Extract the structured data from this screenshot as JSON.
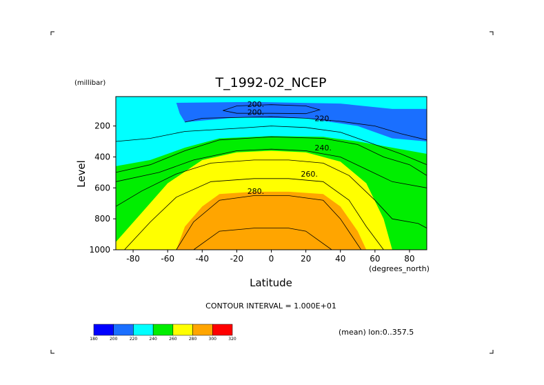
{
  "chart_data": {
    "type": "contour",
    "title": "T_1992-02_NCEP",
    "xlabel": "Latitude",
    "x_units": "(degrees_north)",
    "ylabel": "Level",
    "y_units": "(millibar)",
    "xlim": [
      -90,
      90
    ],
    "ylim": [
      1000,
      10
    ],
    "x_ticks": [
      -80,
      -60,
      -40,
      -20,
      0,
      20,
      40,
      60,
      80
    ],
    "y_ticks": [
      200,
      400,
      600,
      800,
      1000
    ],
    "contour_labels": [
      {
        "text": "200.",
        "lat": -9,
        "level": 60
      },
      {
        "text": "200.",
        "lat": -9,
        "level": 110
      },
      {
        "text": "220.",
        "lat": 30,
        "level": 150
      },
      {
        "text": "240.",
        "lat": 30,
        "level": 340
      },
      {
        "text": "260.",
        "lat": 22,
        "level": 510
      },
      {
        "text": "280.",
        "lat": -9,
        "level": 620
      }
    ],
    "fill_bands": [
      {
        "range": [
          180,
          200
        ],
        "color": "#0000ff"
      },
      {
        "range": [
          200,
          220
        ],
        "color": "#1a6fff"
      },
      {
        "range": [
          220,
          240
        ],
        "color": "#00ffff"
      },
      {
        "range": [
          240,
          260
        ],
        "color": "#00ee00"
      },
      {
        "range": [
          260,
          280
        ],
        "color": "#ffff00"
      },
      {
        "range": [
          280,
          300
        ],
        "color": "#ffa500"
      },
      {
        "range": [
          300,
          320
        ],
        "color": "#ff0000"
      }
    ],
    "contour_interval_text": "CONTOUR INTERVAL = 1.000E+01",
    "mean_note": "(mean) lon:0..357.5",
    "colorbar": {
      "labels": [
        "180",
        "200",
        "220",
        "240",
        "260",
        "280",
        "300",
        "320"
      ],
      "colors": [
        "#0000ff",
        "#1a6fff",
        "#00ffff",
        "#00ee00",
        "#ffff00",
        "#ffa500",
        "#ff0000"
      ]
    },
    "zones": [
      {
        "name": "cold-core-180",
        "color": "#0000ff",
        "points": [
          [
            -24,
            70
          ],
          [
            -20,
            65
          ],
          [
            0,
            62
          ],
          [
            20,
            65
          ],
          [
            26,
            75
          ],
          [
            20,
            90
          ],
          [
            0,
            95
          ],
          [
            -20,
            92
          ],
          [
            -24,
            82
          ]
        ]
      },
      {
        "name": "zone-200",
        "color": "#1a6fff",
        "points": [
          [
            -55,
            50
          ],
          [
            -10,
            45
          ],
          [
            40,
            55
          ],
          [
            70,
            90
          ],
          [
            90,
            90
          ],
          [
            90,
            300
          ],
          [
            70,
            280
          ],
          [
            50,
            200
          ],
          [
            20,
            150
          ],
          [
            -20,
            145
          ],
          [
            -50,
            175
          ],
          [
            -53,
            120
          ]
        ]
      },
      {
        "name": "zone-240",
        "color": "#00ee00",
        "points": [
          [
            -90,
            460
          ],
          [
            -70,
            420
          ],
          [
            -50,
            340
          ],
          [
            -30,
            280
          ],
          [
            0,
            265
          ],
          [
            30,
            270
          ],
          [
            50,
            300
          ],
          [
            70,
            340
          ],
          [
            90,
            380
          ],
          [
            90,
            1000
          ],
          [
            -90,
            1000
          ]
        ]
      },
      {
        "name": "zone-260",
        "color": "#ffff00",
        "points": [
          [
            -90,
            950
          ],
          [
            -75,
            760
          ],
          [
            -60,
            570
          ],
          [
            -40,
            420
          ],
          [
            -20,
            370
          ],
          [
            0,
            360
          ],
          [
            20,
            370
          ],
          [
            40,
            430
          ],
          [
            55,
            570
          ],
          [
            65,
            800
          ],
          [
            70,
            1000
          ],
          [
            -90,
            1000
          ]
        ]
      },
      {
        "name": "zone-280",
        "color": "#ffa500",
        "points": [
          [
            -55,
            1000
          ],
          [
            -50,
            850
          ],
          [
            -40,
            720
          ],
          [
            -30,
            640
          ],
          [
            -10,
            625
          ],
          [
            10,
            625
          ],
          [
            30,
            640
          ],
          [
            40,
            720
          ],
          [
            50,
            880
          ],
          [
            55,
            1000
          ]
        ]
      }
    ],
    "contours": [
      {
        "name": "contour-190",
        "points": [
          [
            -28,
            100
          ],
          [
            -20,
            70
          ],
          [
            0,
            62
          ],
          [
            20,
            70
          ],
          [
            28,
            95
          ],
          [
            20,
            120
          ],
          [
            0,
            118
          ],
          [
            -20,
            118
          ],
          [
            -28,
            100
          ]
        ]
      },
      {
        "name": "contour-200",
        "points": [
          [
            -50,
            175
          ],
          [
            -40,
            150
          ],
          [
            -20,
            145
          ],
          [
            0,
            140
          ],
          [
            20,
            150
          ],
          [
            40,
            170
          ],
          [
            60,
            200
          ],
          [
            75,
            250
          ],
          [
            90,
            290
          ]
        ]
      },
      {
        "name": "contour-220",
        "points": [
          [
            -90,
            300
          ],
          [
            -70,
            280
          ],
          [
            -50,
            235
          ],
          [
            -20,
            215
          ],
          [
            0,
            200
          ],
          [
            20,
            210
          ],
          [
            40,
            240
          ],
          [
            55,
            300
          ],
          [
            75,
            380
          ],
          [
            90,
            450
          ]
        ]
      },
      {
        "name": "contour-240",
        "points": [
          [
            -90,
            500
          ],
          [
            -70,
            450
          ],
          [
            -50,
            360
          ],
          [
            -30,
            290
          ],
          [
            0,
            270
          ],
          [
            30,
            280
          ],
          [
            50,
            320
          ],
          [
            65,
            400
          ],
          [
            80,
            450
          ],
          [
            90,
            520
          ]
        ]
      },
      {
        "name": "contour-250",
        "points": [
          [
            -90,
            560
          ],
          [
            -65,
            500
          ],
          [
            -45,
            420
          ],
          [
            -20,
            360
          ],
          [
            0,
            350
          ],
          [
            20,
            360
          ],
          [
            40,
            400
          ],
          [
            55,
            480
          ],
          [
            70,
            560
          ],
          [
            90,
            600
          ]
        ]
      },
      {
        "name": "contour-260",
        "points": [
          [
            -90,
            720
          ],
          [
            -75,
            620
          ],
          [
            -55,
            510
          ],
          [
            -35,
            440
          ],
          [
            -10,
            420
          ],
          [
            10,
            420
          ],
          [
            30,
            440
          ],
          [
            45,
            520
          ],
          [
            60,
            680
          ],
          [
            70,
            800
          ],
          [
            85,
            830
          ],
          [
            90,
            860
          ]
        ]
      },
      {
        "name": "contour-270",
        "points": [
          [
            -85,
            1000
          ],
          [
            -70,
            820
          ],
          [
            -55,
            660
          ],
          [
            -35,
            560
          ],
          [
            -10,
            540
          ],
          [
            10,
            540
          ],
          [
            30,
            560
          ],
          [
            45,
            680
          ],
          [
            55,
            850
          ],
          [
            65,
            1000
          ]
        ]
      },
      {
        "name": "contour-280",
        "points": [
          [
            -55,
            1000
          ],
          [
            -45,
            820
          ],
          [
            -30,
            680
          ],
          [
            -10,
            650
          ],
          [
            10,
            650
          ],
          [
            30,
            680
          ],
          [
            40,
            800
          ],
          [
            52,
            1000
          ]
        ]
      },
      {
        "name": "contour-290",
        "points": [
          [
            -45,
            1000
          ],
          [
            -30,
            880
          ],
          [
            -10,
            860
          ],
          [
            10,
            860
          ],
          [
            20,
            880
          ],
          [
            35,
            1000
          ]
        ]
      }
    ]
  }
}
